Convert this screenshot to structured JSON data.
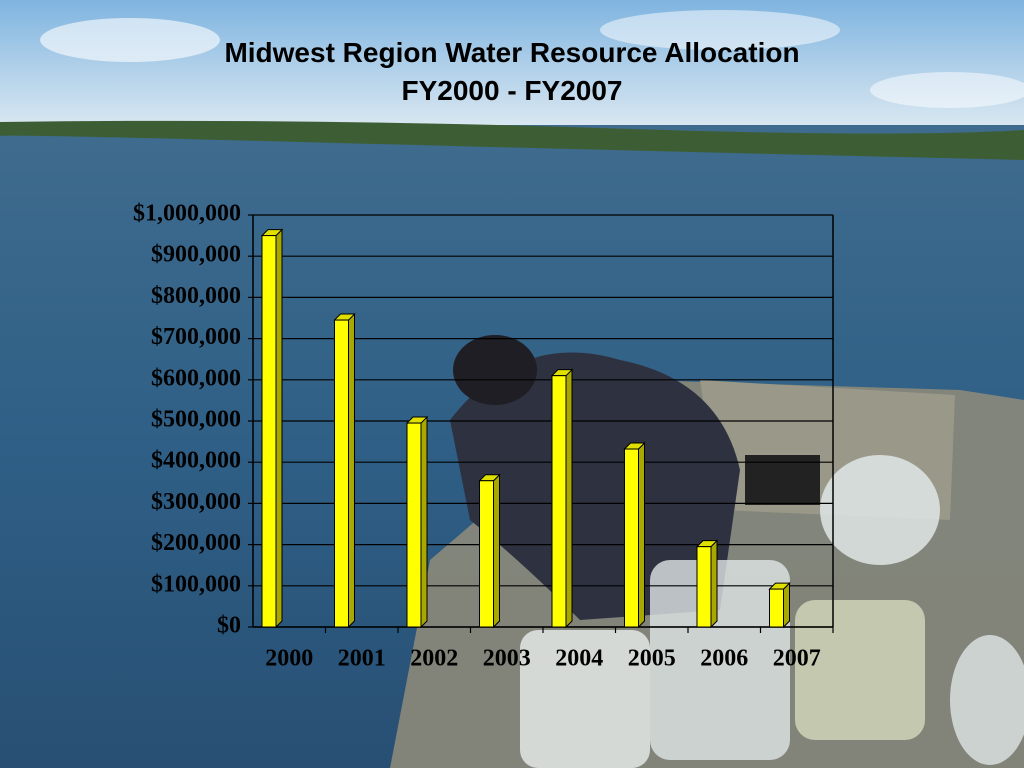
{
  "chart_data": {
    "type": "bar",
    "title": "Midwest Region Water Resource Allocation",
    "subtitle": "FY2000 - FY2007",
    "categories": [
      "2000",
      "2001",
      "2002",
      "2003",
      "2004",
      "2005",
      "2006",
      "2007"
    ],
    "values": [
      950000,
      745000,
      495000,
      355000,
      610000,
      432000,
      195000,
      92000
    ],
    "color": "#ffff00",
    "ylim": [
      0,
      1000000
    ],
    "yticks": [
      {
        "value": 0,
        "label": "$0"
      },
      {
        "value": 100000,
        "label": "$100,000"
      },
      {
        "value": 200000,
        "label": "$200,000"
      },
      {
        "value": 300000,
        "label": "$300,000"
      },
      {
        "value": 400000,
        "label": "$400,000"
      },
      {
        "value": 500000,
        "label": "$500,000"
      },
      {
        "value": 600000,
        "label": "$600,000"
      },
      {
        "value": 700000,
        "label": "$700,000"
      },
      {
        "value": 800000,
        "label": "$800,000"
      },
      {
        "value": 900000,
        "label": "$900,000"
      },
      {
        "value": 1000000,
        "label": "$1,000,000"
      }
    ],
    "grid": true
  }
}
